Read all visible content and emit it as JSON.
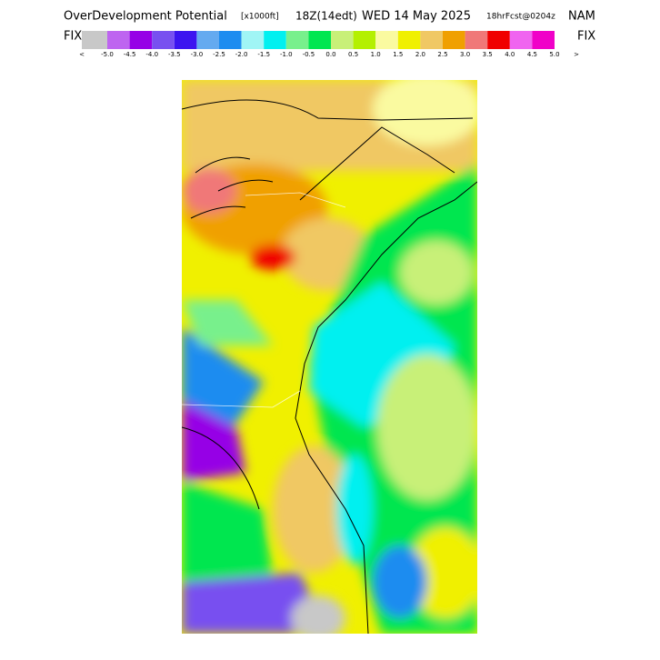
{
  "header": {
    "title": "OverDevelopment Potential",
    "units": "[x1000ft]",
    "time": "18Z(14edt)",
    "date": "WED 14 May 2025",
    "forecast": "18hrFcst@0204z",
    "model": "NAM"
  },
  "side_labels": [
    "FIX",
    "FIX"
  ],
  "colorbar": {
    "colors": [
      "#c8c8c8",
      "#be64f0",
      "#9600e6",
      "#7850f0",
      "#3c14f0",
      "#64aaf0",
      "#1e8cf0",
      "#a0f5f5",
      "#00f0f0",
      "#78f08c",
      "#00e650",
      "#c8f078",
      "#b4f000",
      "#fafaa0",
      "#f0f000",
      "#f0c864",
      "#f0a000",
      "#f07878",
      "#f00000",
      "#f064f0",
      "#f000c8"
    ],
    "labels": [
      "<",
      "-5.0",
      "-4.5",
      "-4.0",
      "-3.5",
      "-3.0",
      "-2.5",
      "-2.0",
      "-1.5",
      "-1.0",
      "-0.5",
      "0.0",
      "0.5",
      "1.0",
      "1.5",
      "2.0",
      "2.5",
      "3.0",
      "3.5",
      "4.0",
      "4.5",
      "5.0",
      ">"
    ]
  }
}
